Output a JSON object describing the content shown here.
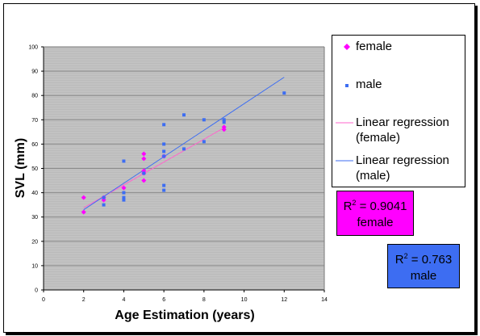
{
  "chart_data": {
    "type": "scatter",
    "xlabel": "Age Estimation (years)",
    "ylabel": "SVL (mm)",
    "xlim": [
      0,
      14
    ],
    "ylim": [
      0,
      100
    ],
    "xticks": [
      "0",
      "2",
      "4",
      "6",
      "8",
      "10",
      "12",
      "14"
    ],
    "yticks": [
      "0",
      "10",
      "20",
      "30",
      "40",
      "50",
      "60",
      "70",
      "80",
      "90",
      "100"
    ],
    "grid": true,
    "legend_position": "right",
    "series": [
      {
        "name": "female",
        "color": "#ff00ff",
        "marker": "diamond",
        "points": [
          [
            2,
            38
          ],
          [
            2,
            32
          ],
          [
            3,
            38
          ],
          [
            3,
            37
          ],
          [
            4,
            42
          ],
          [
            5,
            56
          ],
          [
            5,
            54
          ],
          [
            5,
            49
          ],
          [
            5,
            48
          ],
          [
            5,
            45
          ],
          [
            6,
            55
          ],
          [
            9,
            67
          ],
          [
            9,
            66
          ]
        ]
      },
      {
        "name": "male",
        "color": "#3d6df2",
        "marker": "square",
        "points": [
          [
            3,
            38
          ],
          [
            3,
            35
          ],
          [
            4,
            53
          ],
          [
            4,
            40
          ],
          [
            4,
            38
          ],
          [
            4,
            37
          ],
          [
            5,
            48
          ],
          [
            6,
            68
          ],
          [
            6,
            60
          ],
          [
            6,
            57
          ],
          [
            6,
            55
          ],
          [
            6,
            43
          ],
          [
            6,
            41
          ],
          [
            7,
            72
          ],
          [
            7,
            58
          ],
          [
            8,
            70
          ],
          [
            8,
            61
          ],
          [
            9,
            70
          ],
          [
            9,
            69
          ],
          [
            12,
            81
          ]
        ]
      }
    ],
    "regression": [
      {
        "name": "Linear regression (female)",
        "color": "#ff66cc",
        "x": [
          2,
          9
        ],
        "y": [
          33.8,
          66.7
        ]
      },
      {
        "name": "Linear regression (male)",
        "color": "#3d6df2",
        "x": [
          2,
          12
        ],
        "y": [
          33.0,
          87.5
        ]
      }
    ],
    "annotations": [
      {
        "series": "female",
        "r2": "= 0.9041",
        "label": "female"
      },
      {
        "series": "male",
        "r2": "= 0.763",
        "label": "male"
      }
    ]
  },
  "legend": {
    "items": [
      {
        "label": "female"
      },
      {
        "label": "male"
      },
      {
        "label": "Linear regression (female)",
        "line1": "Linear regression",
        "line2": "(female)"
      },
      {
        "label": "Linear regression (male)",
        "line1": "Linear regression",
        "line2": "(male)"
      }
    ]
  },
  "r2_female": {
    "prefix": "R",
    "sup": "2",
    "value": " = 0.9041",
    "label": "female"
  },
  "r2_male": {
    "prefix": "R",
    "sup": "2",
    "value": " = 0.763",
    "label": "male"
  }
}
